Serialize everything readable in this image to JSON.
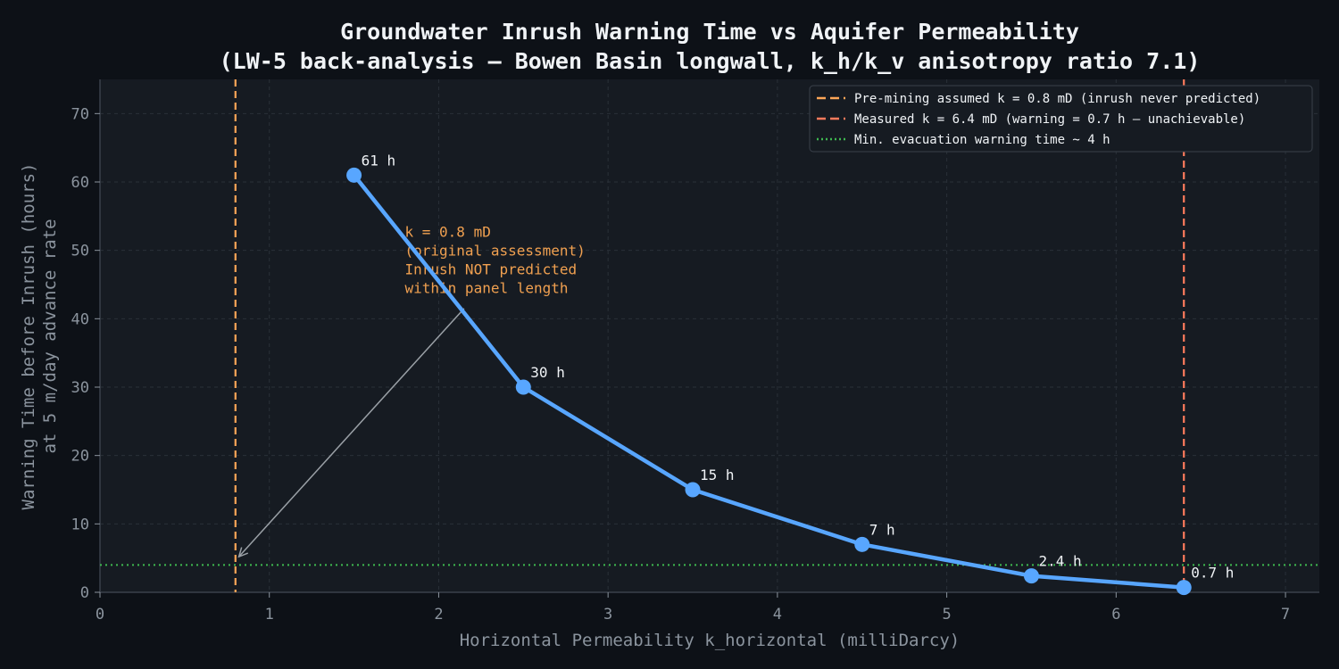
{
  "chart_data": {
    "type": "line",
    "title_lines": [
      "Groundwater Inrush Warning Time vs Aquifer Permeability",
      "(LW-5 back-analysis — Bowen Basin longwall, k_h/k_v anisotropy ratio 7.1)"
    ],
    "xlabel": "Horizontal Permeability k_horizontal (milliDarcy)",
    "ylabel_lines": [
      "Warning Time before Inrush (hours)",
      "at 5 m/day advance rate"
    ],
    "xlim": [
      0,
      7.2
    ],
    "ylim": [
      0,
      75
    ],
    "x_ticks": [
      0,
      1,
      2,
      3,
      4,
      5,
      6,
      7
    ],
    "y_ticks": [
      0,
      10,
      20,
      30,
      40,
      50,
      60,
      70
    ],
    "grid": true,
    "series": [
      {
        "x": [
          1.5,
          2.5,
          3.5,
          4.5,
          5.5,
          6.4
        ],
        "y": [
          61,
          30,
          15,
          7,
          2.4,
          0.7
        ],
        "labels": [
          "61 h",
          "30 h",
          "15 h",
          "7 h",
          "2.4 h",
          "0.7 h"
        ],
        "color": "#58a6ff"
      }
    ],
    "vlines": [
      {
        "x": 0.8,
        "color": "#ffa657",
        "style": "dashed",
        "label": "Pre-mining assumed k = 0.8 mD (inrush never predicted)"
      },
      {
        "x": 6.4,
        "color": "#ff7b5c",
        "style": "dashed",
        "label": "Measured k = 6.4 mD (warning = 0.7 h — unachievable)"
      }
    ],
    "hlines": [
      {
        "y": 4,
        "color": "#3fb950",
        "style": "dotted",
        "label": "Min. evacuation warning time ~ 4 h"
      }
    ],
    "annotation": {
      "lines": [
        "k = 0.8 mD",
        "(original assessment)",
        "Inrush NOT predicted",
        "within panel length"
      ],
      "text_at": [
        1.8,
        52
      ],
      "arrow_from": [
        2.15,
        41.5
      ],
      "arrow_to": [
        0.82,
        5.2
      ],
      "color": "#ffa657"
    },
    "legend_position": "top-right",
    "colors": {
      "page_bg": "#0d1117",
      "plot_bg": "#161b22",
      "grid": "#2a3038",
      "axis": "#3a414b"
    }
  }
}
